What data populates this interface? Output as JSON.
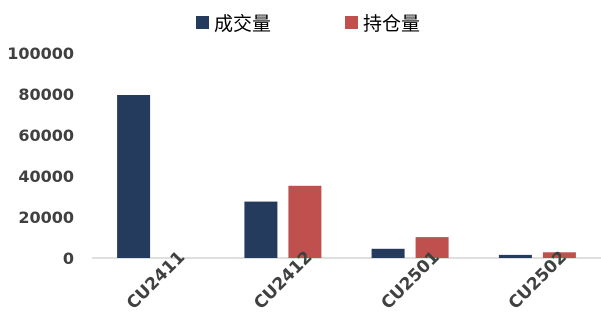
{
  "chart_data": {
    "type": "bar",
    "title": "",
    "xlabel": "",
    "ylabel": "",
    "categories": [
      "CU2411",
      "CU2412",
      "CU2501",
      "CU2502"
    ],
    "series": [
      {
        "name": "成交量",
        "color": "#243b5e",
        "values": [
          79500,
          27500,
          4500,
          1500
        ]
      },
      {
        "name": "持仓量",
        "color": "#c0504d",
        "values": [
          0,
          35200,
          10200,
          2800
        ]
      }
    ],
    "ylim": [
      0,
      100000
    ],
    "yticks": [
      "0",
      "20000",
      "40000",
      "60000",
      "80000",
      "100000"
    ],
    "grid": false,
    "legend": "top-center"
  }
}
